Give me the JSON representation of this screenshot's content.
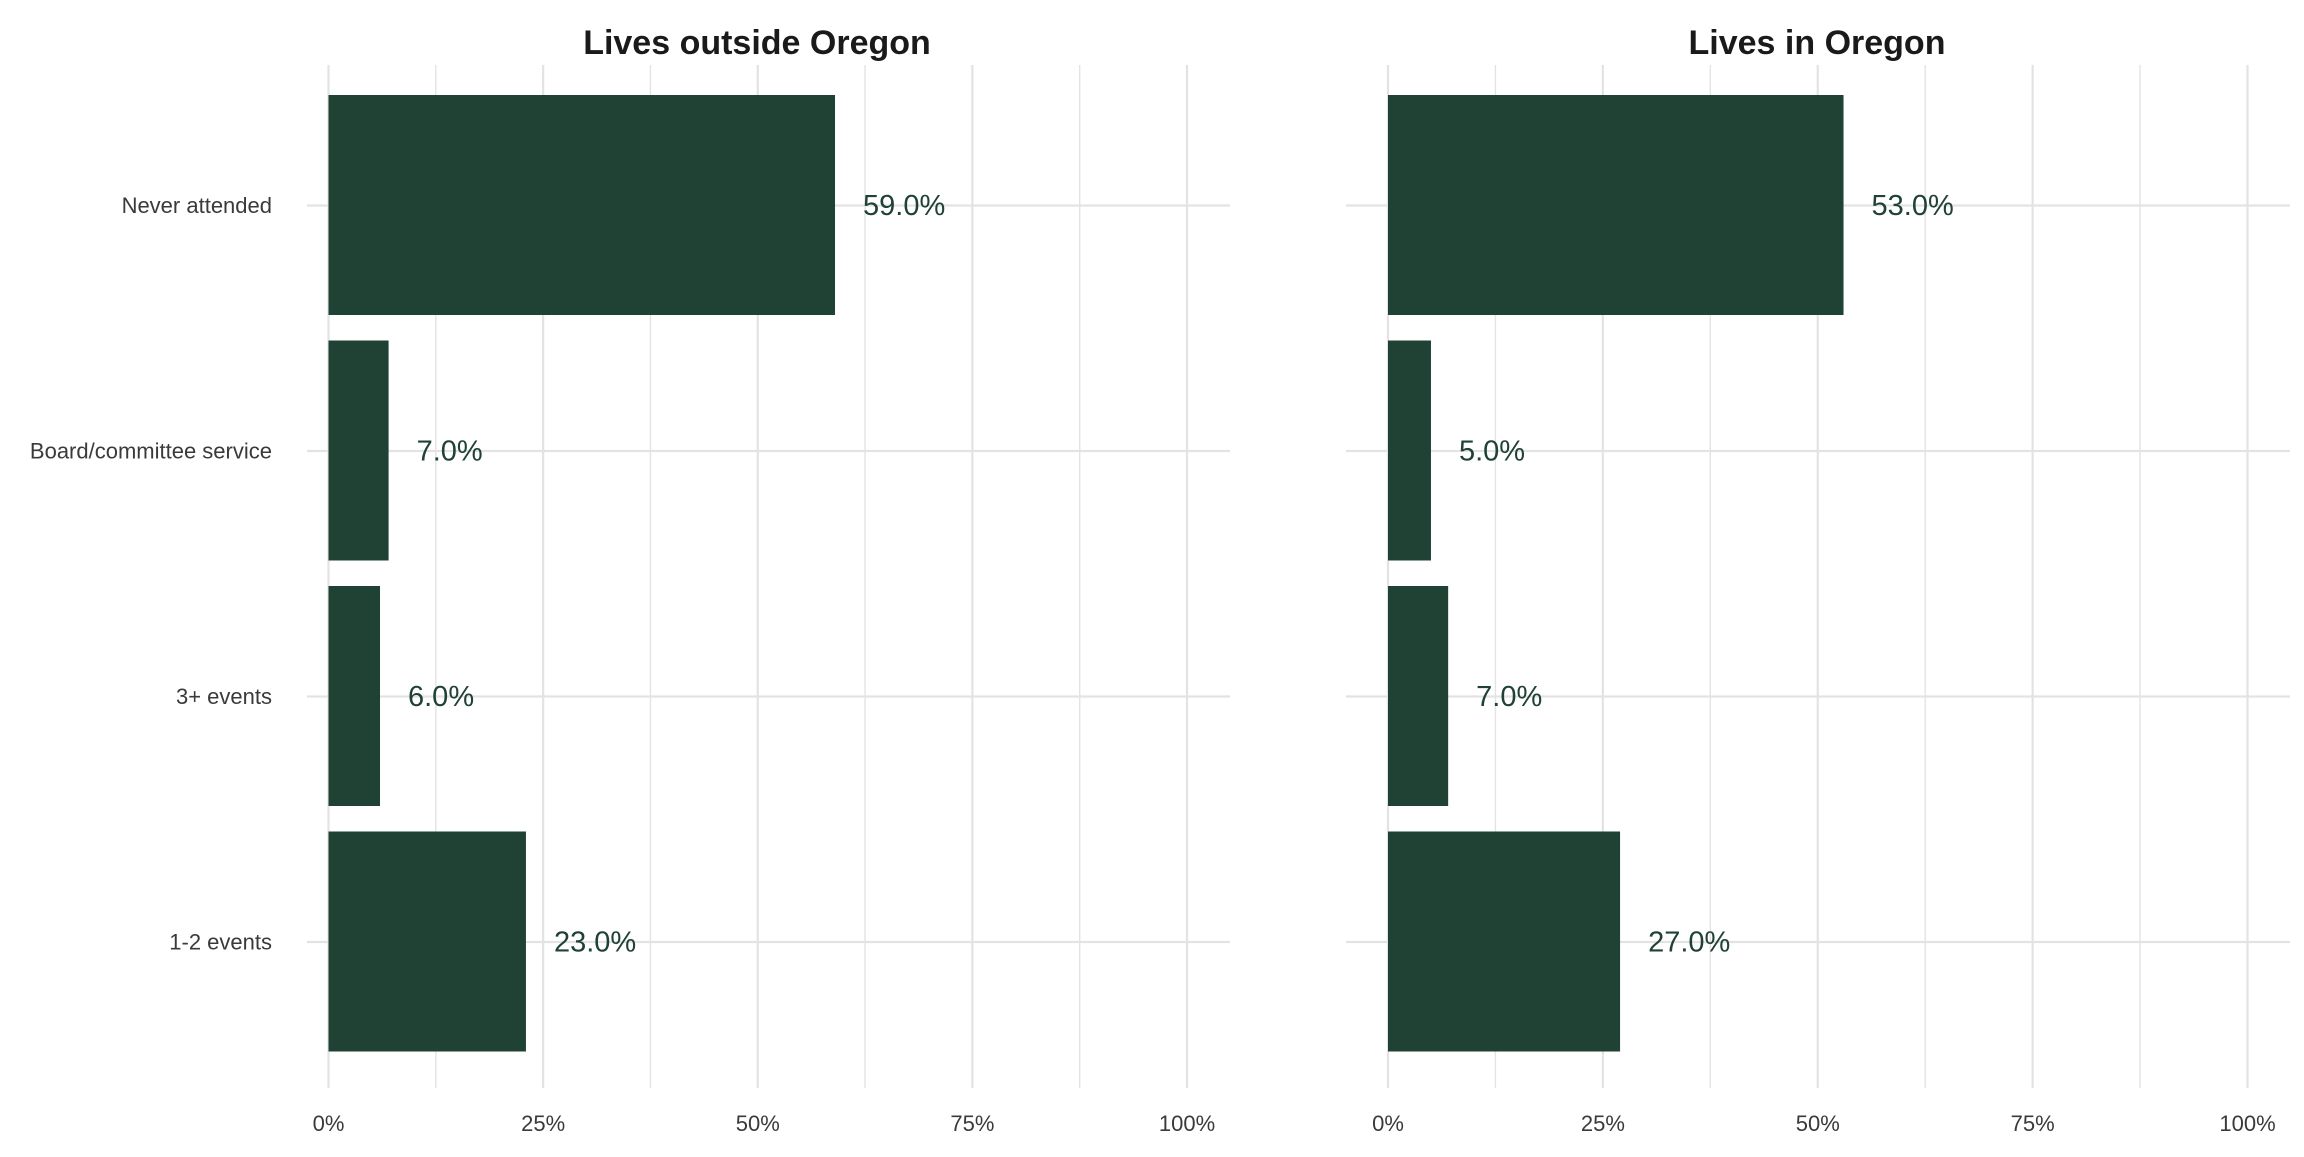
{
  "chart_data": {
    "type": "bar",
    "orientation": "horizontal",
    "categories": [
      "Never attended",
      "Board/committee service",
      "3+ events",
      "1-2 events"
    ],
    "xlim": [
      0,
      100
    ],
    "x_ticks": [
      "0%",
      "25%",
      "50%",
      "75%",
      "100%"
    ],
    "x_tick_values": [
      0,
      25,
      50,
      75,
      100
    ],
    "grid": true,
    "bar_color": "#204234",
    "label_color": "#204234",
    "panels": [
      {
        "title": "Lives outside Oregon",
        "values": [
          59.0,
          7.0,
          6.0,
          23.0
        ],
        "labels": [
          "59.0%",
          "7.0%",
          "6.0%",
          "23.0%"
        ]
      },
      {
        "title": "Lives in Oregon",
        "values": [
          53.0,
          5.0,
          7.0,
          27.0
        ],
        "labels": [
          "53.0%",
          "5.0%",
          "7.0%",
          "27.0%"
        ]
      }
    ]
  }
}
